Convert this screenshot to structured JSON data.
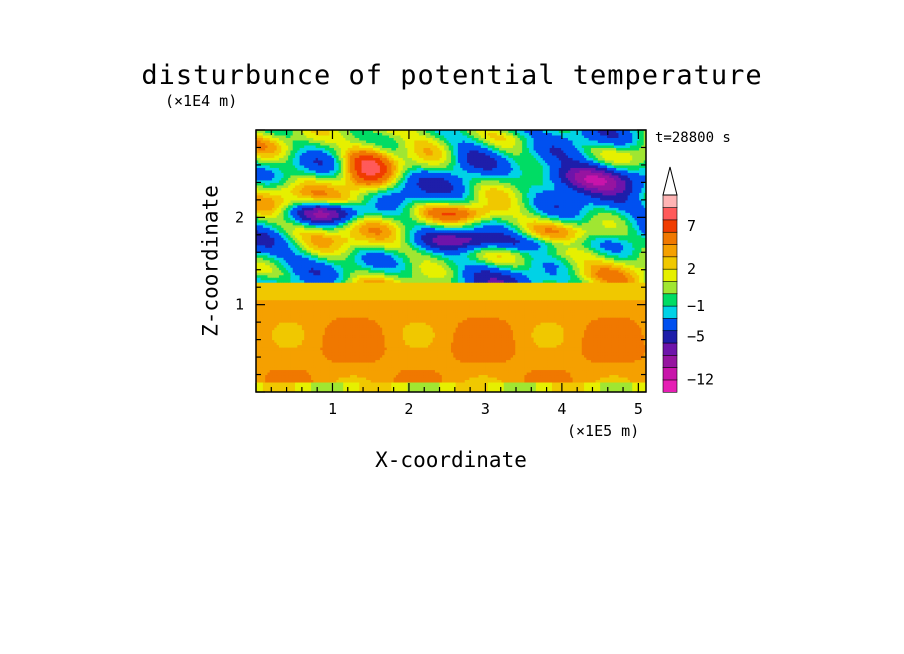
{
  "chart_data": {
    "type": "heatmap",
    "title": "disturbunce of potential temperature",
    "xlabel": "X-coordinate",
    "ylabel": "Z-coordinate",
    "x_unit_label": "(×1E5 m)",
    "y_unit_label": "(×1E4 m)",
    "time_label": "t=28800 s",
    "xlim": [
      0,
      5.1
    ],
    "ylim": [
      0,
      3.0
    ],
    "x_ticks": [
      1,
      2,
      3,
      4,
      5
    ],
    "y_ticks": [
      1,
      2
    ],
    "grid": false,
    "legend": "right",
    "colorbar": {
      "levels": [
        {
          "from": -14,
          "to": -12,
          "color": "#e61eb4"
        },
        {
          "from": -12,
          "to": -10,
          "color": "#c814aa"
        },
        {
          "from": -10,
          "to": -8,
          "color": "#9614a0"
        },
        {
          "from": -8,
          "to": -6,
          "color": "#6e14aa"
        },
        {
          "from": -6,
          "to": -4,
          "color": "#1e1eaa"
        },
        {
          "from": -4,
          "to": -2,
          "color": "#0050f0"
        },
        {
          "from": -2,
          "to": -1,
          "color": "#00d2e6"
        },
        {
          "from": -1,
          "to": 0,
          "color": "#00dc64"
        },
        {
          "from": 0,
          "to": 1,
          "color": "#a0e632"
        },
        {
          "from": 1,
          "to": 2,
          "color": "#e6f000"
        },
        {
          "from": 2,
          "to": 3,
          "color": "#f0c800"
        },
        {
          "from": 3,
          "to": 4,
          "color": "#f5a000"
        },
        {
          "from": 4,
          "to": 6,
          "color": "#f07800"
        },
        {
          "from": 6,
          "to": 8,
          "color": "#f03c00"
        },
        {
          "from": 8,
          "to": 10,
          "color": "#ff5a5a"
        },
        {
          "from": 10,
          "to": 12,
          "color": "#ffb4b4"
        }
      ],
      "tick_labels": [
        {
          "value": 7,
          "label": "7"
        },
        {
          "value": 2,
          "label": "2"
        },
        {
          "value": -1,
          "label": "−1"
        },
        {
          "value": -5,
          "label": "−5"
        },
        {
          "value": -12,
          "label": "−12"
        }
      ],
      "extend": "max"
    }
  }
}
